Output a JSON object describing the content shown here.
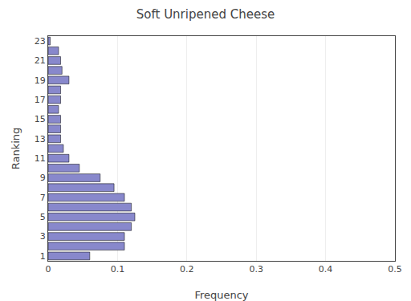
{
  "chart_data": {
    "type": "bar",
    "orientation": "horizontal",
    "title": "Soft Unripened Cheese",
    "xlabel": "Frequency",
    "ylabel": "Ranking",
    "categories": [
      1,
      2,
      3,
      4,
      5,
      6,
      7,
      8,
      9,
      10,
      11,
      12,
      13,
      14,
      15,
      16,
      17,
      18,
      19,
      20,
      21,
      22,
      23
    ],
    "values": [
      0.06,
      0.11,
      0.11,
      0.12,
      0.125,
      0.12,
      0.11,
      0.095,
      0.075,
      0.045,
      0.03,
      0.022,
      0.018,
      0.018,
      0.018,
      0.015,
      0.018,
      0.018,
      0.03,
      0.02,
      0.018,
      0.015,
      0.003
    ],
    "color": "#8888cc",
    "xlim": [
      0,
      0.5
    ],
    "xticks": [
      0,
      0.1,
      0.2,
      0.3,
      0.4,
      0.5
    ],
    "ylim": [
      0.5,
      23.5
    ],
    "yticks": [
      1,
      3,
      5,
      7,
      9,
      11,
      13,
      15,
      17,
      19,
      21,
      23
    ],
    "grid": true
  }
}
